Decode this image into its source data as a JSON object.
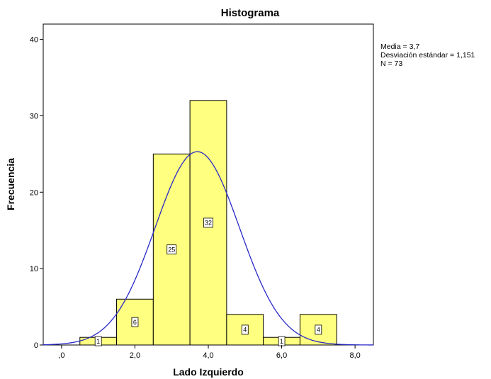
{
  "chart_data": {
    "type": "bar",
    "title": "Histograma",
    "xlabel": "Lado Izquierdo",
    "ylabel": "Frecuencia",
    "xlim": [
      -0.5,
      8.5
    ],
    "ylim": [
      0,
      42
    ],
    "x_ticks": [
      {
        "value": 0,
        "label": ",0"
      },
      {
        "value": 2,
        "label": "2,0"
      },
      {
        "value": 4,
        "label": "4,0"
      },
      {
        "value": 6,
        "label": "6,0"
      },
      {
        "value": 8,
        "label": "8,0"
      }
    ],
    "y_ticks": [
      0,
      10,
      20,
      30,
      40
    ],
    "bins": [
      {
        "start": 0.5,
        "end": 1.5,
        "count": 1
      },
      {
        "start": 1.5,
        "end": 2.5,
        "count": 6
      },
      {
        "start": 2.5,
        "end": 3.5,
        "count": 25
      },
      {
        "start": 3.5,
        "end": 4.5,
        "count": 32
      },
      {
        "start": 4.5,
        "end": 5.5,
        "count": 4
      },
      {
        "start": 5.5,
        "end": 6.5,
        "count": 1
      },
      {
        "start": 6.5,
        "end": 7.5,
        "count": 4
      }
    ],
    "normal_curve": {
      "mean": 3.7,
      "sd": 1.151,
      "n": 73,
      "bin_width": 1
    },
    "stats_text": [
      "Media = 3,7",
      "Desviación estándar = 1,151",
      "N = 73"
    ],
    "colors": {
      "bar_fill": "#ffff80",
      "bar_stroke": "#000000",
      "curve": "#2929c8"
    },
    "grid": false
  }
}
